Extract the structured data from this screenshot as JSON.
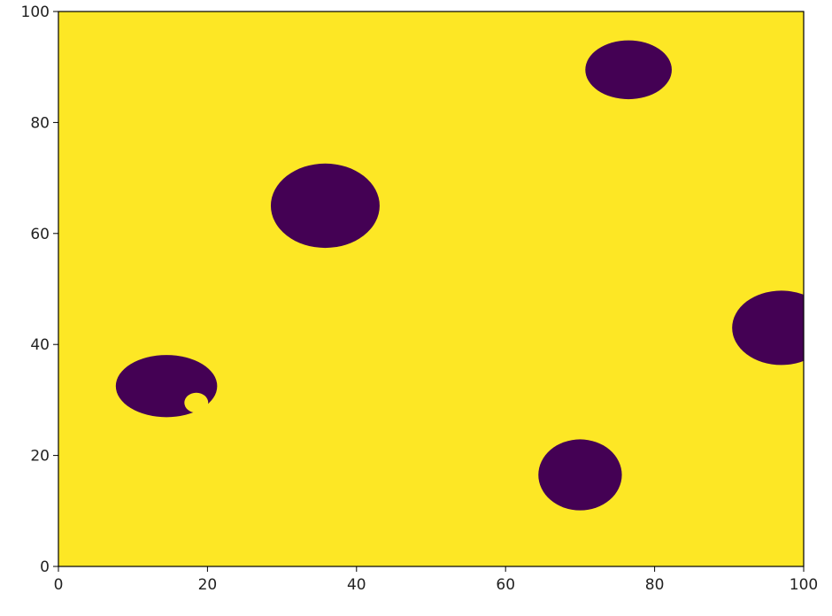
{
  "chart_data": {
    "type": "heatmap",
    "title": "",
    "xlabel": "",
    "ylabel": "",
    "xlim": [
      0,
      100
    ],
    "ylim": [
      0,
      100
    ],
    "grid": false,
    "colors": {
      "background": "#fde725",
      "blob": "#440154",
      "axis": "#000000"
    },
    "x_ticks": [
      0,
      20,
      40,
      60,
      80,
      100
    ],
    "y_ticks": [
      0,
      20,
      40,
      60,
      80,
      100
    ],
    "x_tick_labels": [
      "0",
      "20",
      "40",
      "60",
      "80",
      "100"
    ],
    "y_tick_labels": [
      "0",
      "20",
      "40",
      "60",
      "80",
      "100"
    ],
    "blobs": [
      {
        "id": "blob-top-right",
        "cx": 76.5,
        "cy": 89.5,
        "rx": 5.8,
        "ry": 5.3
      },
      {
        "id": "blob-upper-middle",
        "cx": 35.8,
        "cy": 65.0,
        "rx": 7.3,
        "ry": 7.6
      },
      {
        "id": "blob-right-edge",
        "cx": 97.0,
        "cy": 43.0,
        "rx": 6.6,
        "ry": 6.7
      },
      {
        "id": "blob-left",
        "cx": 14.5,
        "cy": 32.5,
        "rx": 6.8,
        "ry": 5.6
      },
      {
        "id": "blob-bottom-right",
        "cx": 70.0,
        "cy": 16.5,
        "rx": 5.6,
        "ry": 6.4
      }
    ],
    "holes": [
      {
        "id": "hole-left-blob",
        "cx": 18.5,
        "cy": 29.5,
        "rx": 1.6,
        "ry": 1.8
      }
    ]
  }
}
